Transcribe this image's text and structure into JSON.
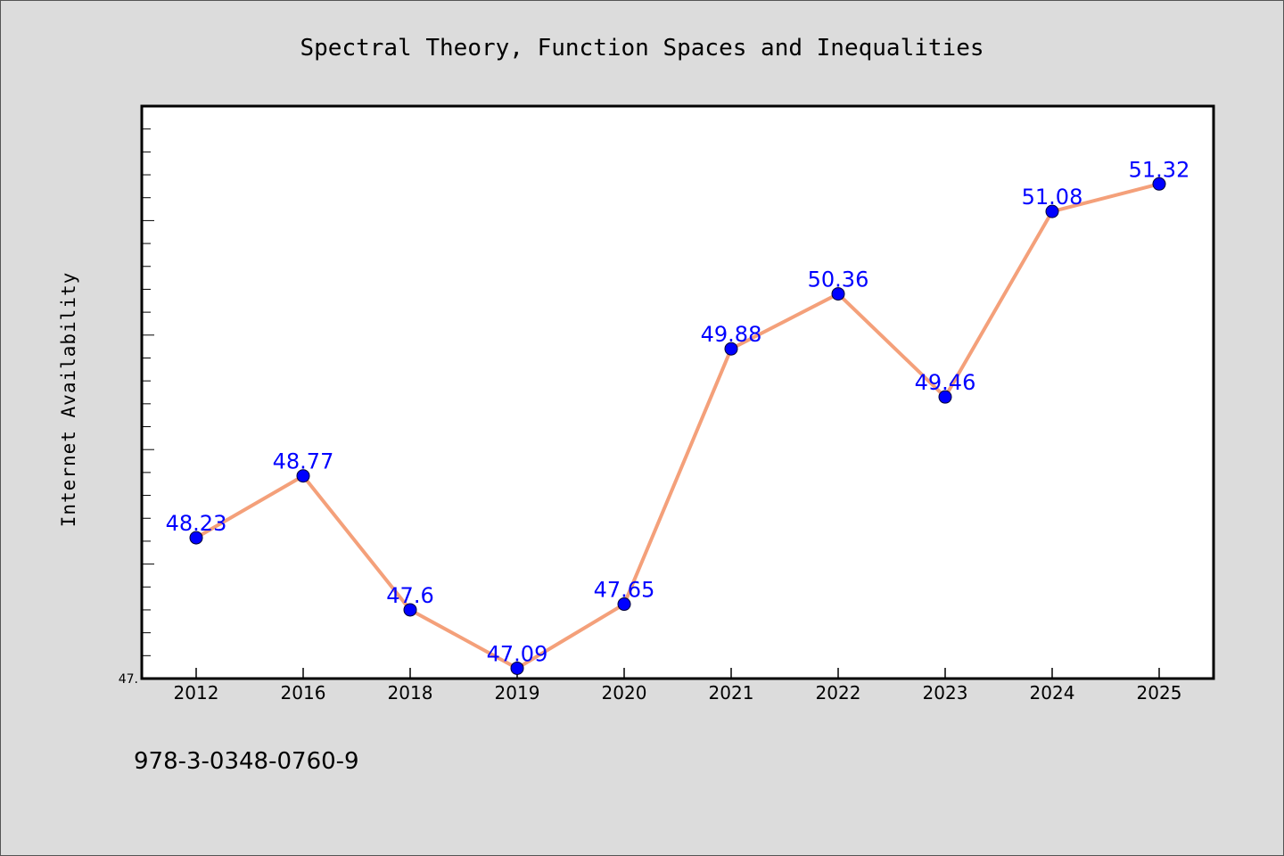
{
  "chart_data": {
    "type": "line",
    "title": "Spectral Theory, Function Spaces and Inequalities",
    "xlabel": "",
    "ylabel": "Internet Availability",
    "categories": [
      "2012",
      "2016",
      "2018",
      "2019",
      "2020",
      "2021",
      "2022",
      "2023",
      "2024",
      "2025"
    ],
    "series": [
      {
        "values": [
          48.23,
          48.77,
          47.6,
          47.09,
          47.65,
          49.88,
          50.36,
          49.46,
          51.08,
          51.32
        ],
        "data_labels": [
          "48.23",
          "48.77",
          "47.6",
          "47.09",
          "47.65",
          "49.88",
          "50.36",
          "49.46",
          "51.08",
          "51.32"
        ]
      }
    ],
    "ylim": [
      47.0,
      52.0
    ],
    "ytick_labels": [
      {
        "value": 47.0,
        "label": "47."
      }
    ],
    "grid": false,
    "legend": "none",
    "colors": {
      "line": "#f4a07a",
      "marker": "#0000ff",
      "label": "#0000ff",
      "background": "#dcdcdc",
      "plot_background": "#ffffff"
    }
  },
  "footer": {
    "isbn": "978-3-0348-0760-9"
  }
}
